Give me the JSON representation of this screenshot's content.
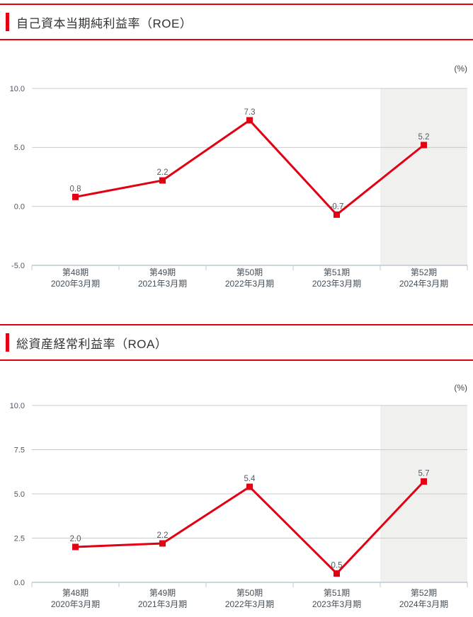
{
  "page": {
    "accent_color": "#e20012"
  },
  "sections": [
    {
      "title": "自己資本当期純利益率（ROE）"
    },
    {
      "title": "総資産経常利益率（ROA）"
    }
  ],
  "chart_data": [
    {
      "type": "line",
      "title": "自己資本当期純利益率（ROE）",
      "unit": "(%)",
      "categories": [
        [
          "第48期",
          "2020年3月期"
        ],
        [
          "第49期",
          "2021年3月期"
        ],
        [
          "第50期",
          "2022年3月期"
        ],
        [
          "第51期",
          "2023年3月期"
        ],
        [
          "第52期",
          "2024年3月期"
        ]
      ],
      "values": [
        0.8,
        2.2,
        7.3,
        -0.7,
        5.2
      ],
      "value_labels": [
        "0.8",
        "2.2",
        "7.3",
        "-0.7",
        "5.2"
      ],
      "ylim": [
        -5,
        10
      ],
      "yticks": [
        {
          "value": 10,
          "label": "10.0"
        },
        {
          "value": 5,
          "label": "5.0"
        },
        {
          "value": 0,
          "label": "0.0"
        },
        {
          "value": -5,
          "label": "-5.0",
          "axis": true
        }
      ],
      "grid": true,
      "legend": "none",
      "marker": "square",
      "line_color": "#e20012",
      "highlight_column": 4,
      "band_color": "#f0f0ef"
    },
    {
      "type": "line",
      "title": "総資産経常利益率（ROA）",
      "unit": "(%)",
      "categories": [
        [
          "第48期",
          "2020年3月期"
        ],
        [
          "第49期",
          "2021年3月期"
        ],
        [
          "第50期",
          "2022年3月期"
        ],
        [
          "第51期",
          "2023年3月期"
        ],
        [
          "第52期",
          "2024年3月期"
        ]
      ],
      "values": [
        2.0,
        2.2,
        5.4,
        0.5,
        5.7
      ],
      "value_labels": [
        "2.0",
        "2.2",
        "5.4",
        "0.5",
        "5.7"
      ],
      "ylim": [
        0,
        10
      ],
      "yticks": [
        {
          "value": 10,
          "label": "10.0"
        },
        {
          "value": 7.5,
          "label": "7.5"
        },
        {
          "value": 5,
          "label": "5.0"
        },
        {
          "value": 2.5,
          "label": "2.5"
        },
        {
          "value": 0,
          "label": "0.0",
          "axis": true
        }
      ],
      "grid": true,
      "legend": "none",
      "marker": "square",
      "line_color": "#e20012",
      "highlight_column": 4,
      "band_color": "#f0f0ef"
    }
  ]
}
